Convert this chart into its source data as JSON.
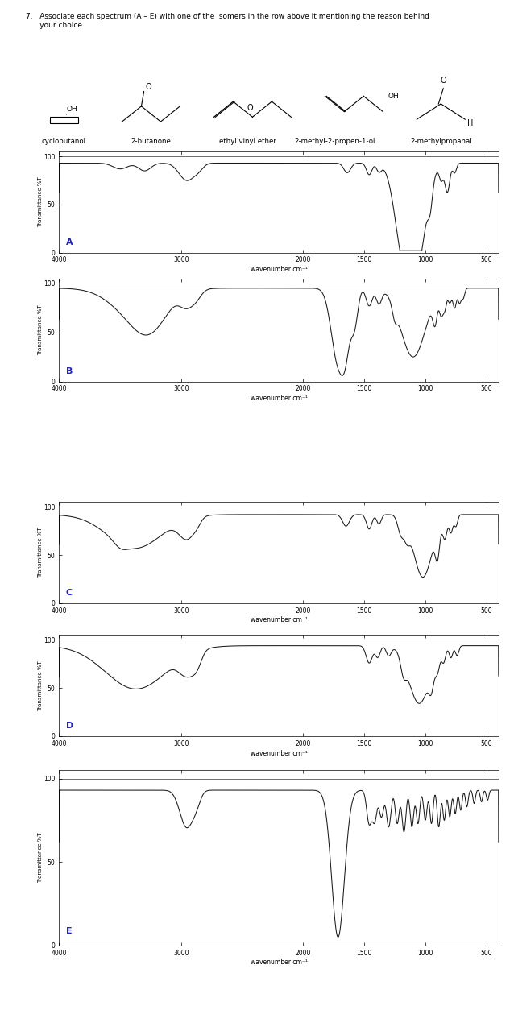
{
  "title_text": "7.   Associate each spectrum (A – E) with one of the isomers in the row above it mentioning the reason behind\n      your choice.",
  "compound_names": [
    "cyclobutanol",
    "2-butanone",
    "ethyl vinyl ether",
    "2-methyl-2-propen-1-ol",
    "2-methylpropanal"
  ],
  "spectrum_labels": [
    "A",
    "B",
    "C",
    "D",
    "E"
  ],
  "xlabel": "wavenumber cm⁻¹",
  "ylabel": "Transmittance %T",
  "line_color": "#1a1a1a",
  "label_color": "#2222cc",
  "x_ticks": [
    4000,
    3000,
    2000,
    1500,
    1000,
    500
  ],
  "x_tick_labels": [
    "4000",
    "3000",
    "2000",
    "1500",
    "1000",
    "500"
  ],
  "bg_color": "#ffffff"
}
